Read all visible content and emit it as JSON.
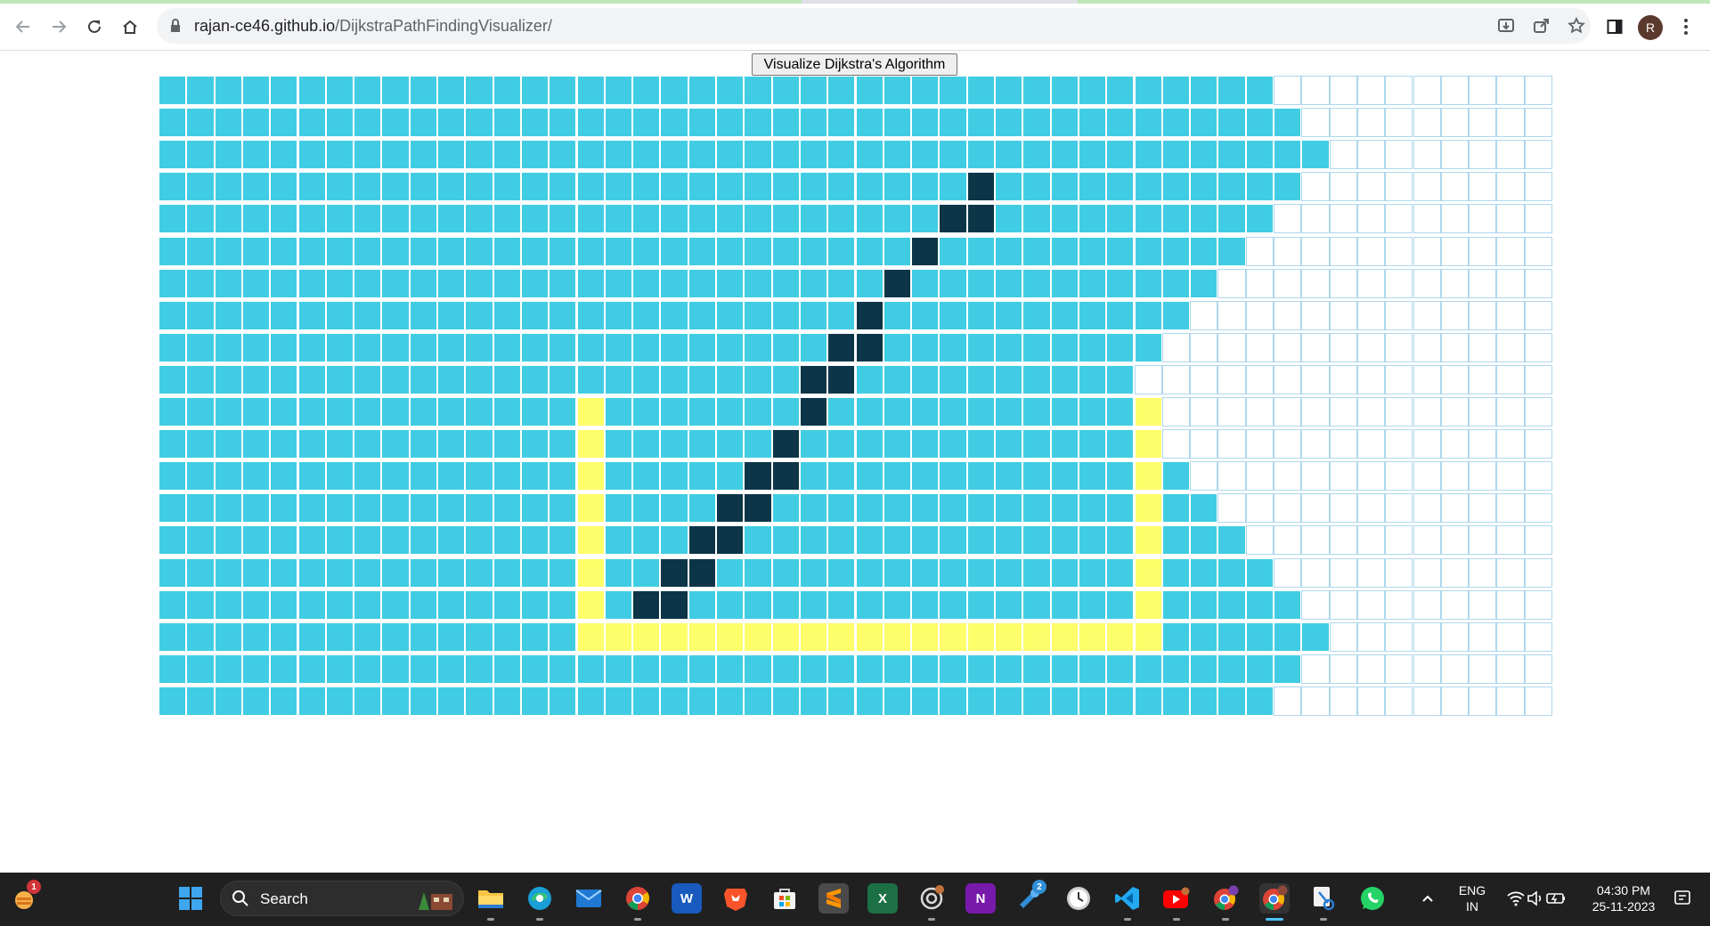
{
  "browser": {
    "url_host": "rajan-ce46.github.io",
    "url_path": "/DijkstraPathFindingVisualizer/",
    "profile_initial": "R"
  },
  "page": {
    "button_label": "Visualize Dijkstra's Algorithm"
  },
  "grid": {
    "rows": 20,
    "cols": 50,
    "legend": {
      "visited": "#40cde3",
      "wall": "#fefe6a",
      "path": "#0c3547",
      "unvisited": "#ffffff"
    },
    "visited_cols_per_row": [
      40,
      41,
      42,
      41,
      40,
      39,
      38,
      37,
      36,
      35,
      35,
      35,
      37,
      38,
      39,
      40,
      41,
      42,
      41,
      40
    ],
    "walls": {
      "left_col": 15,
      "right_col": 35,
      "top_row": 10,
      "bottom_row": 17
    },
    "path_cells": [
      [
        3,
        29
      ],
      [
        4,
        28
      ],
      [
        4,
        29
      ],
      [
        5,
        27
      ],
      [
        6,
        26
      ],
      [
        7,
        25
      ],
      [
        8,
        24
      ],
      [
        8,
        25
      ],
      [
        9,
        23
      ],
      [
        9,
        24
      ],
      [
        10,
        23
      ],
      [
        11,
        22
      ],
      [
        12,
        21
      ],
      [
        12,
        22
      ],
      [
        13,
        20
      ],
      [
        13,
        21
      ],
      [
        14,
        19
      ],
      [
        14,
        20
      ],
      [
        15,
        18
      ],
      [
        15,
        19
      ],
      [
        16,
        17
      ],
      [
        16,
        18
      ]
    ]
  },
  "taskbar": {
    "search_label": "Search",
    "language_top": "ENG",
    "language_bottom": "IN",
    "time": "04:30 PM",
    "date": "25-11-2023",
    "widgets_badge": "1",
    "steam_badge": "2",
    "icons": [
      "widgets-icon",
      "start-icon",
      "file-explorer-icon",
      "edge-icon",
      "mail-icon",
      "chrome-icon",
      "word-icon",
      "brave-icon",
      "store-icon",
      "sublime-icon",
      "excel-icon",
      "chatgpt-icon",
      "onenote-icon",
      "steam-icon",
      "clock-icon",
      "vscode-icon",
      "youtube-icon",
      "chrome-profile-icon",
      "chrome-active-icon",
      "snipping-icon",
      "whatsapp-icon"
    ]
  }
}
